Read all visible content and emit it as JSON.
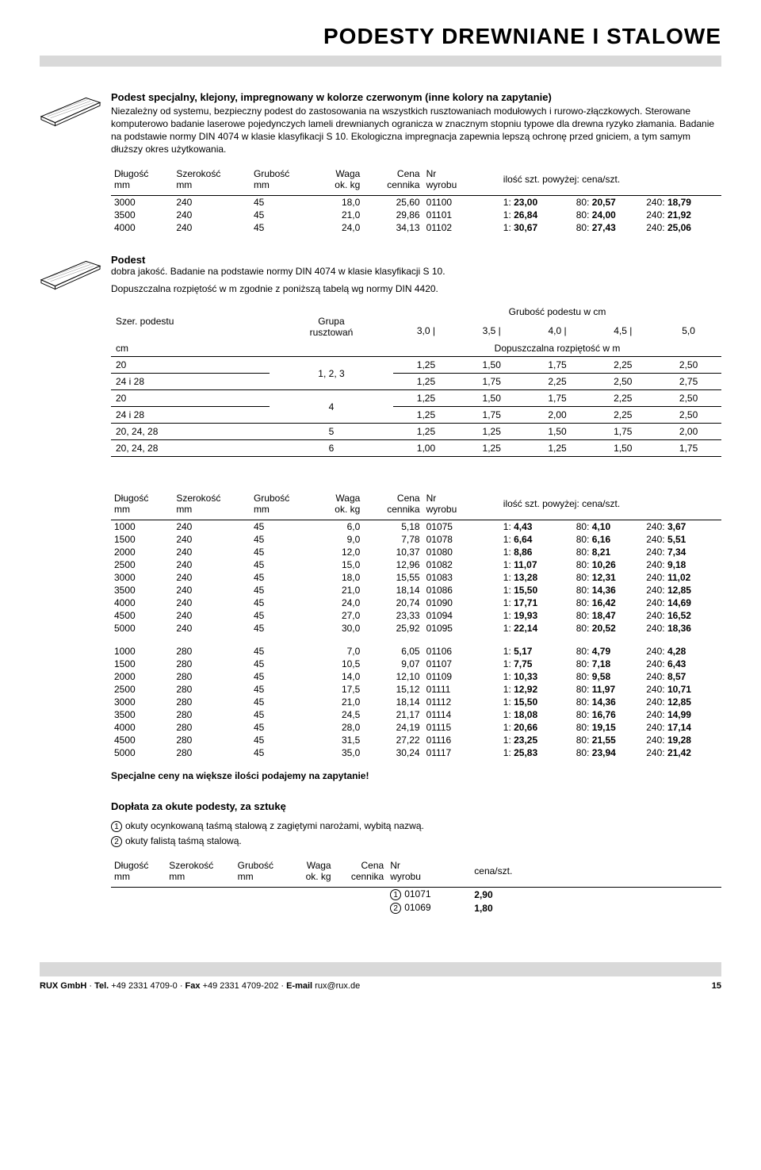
{
  "page": {
    "title": "PODESTY DREWNIANE I STALOWE",
    "number": "15"
  },
  "product1": {
    "heading": "Podest specjalny, klejony, impregnowany w kolorze czerwonym (inne kolory na zapytanie)",
    "desc": "Niezależny od systemu, bezpieczny podest do zastosowania na wszystkich rusztowaniach modułowych i rurowo-złączkowych. Sterowane komputerowo badanie laserowe pojedynczych lameli drewnianych ogranicza w znacznym stopniu typowe dla drewna ryzyko złamania. Badanie na podstawie normy DIN 4074 w klasie klasyfikacji S 10. Ekologiczna impregnacja zapewnia lepszą ochronę przed gniciem, a tym samym dłuższy okres użytkowania."
  },
  "headers": {
    "length": "Długość\nmm",
    "width": "Szerokość\nmm",
    "thick": "Grubość\nmm",
    "weight": "Waga\nok. kg",
    "price": "Cena\ncennika",
    "partno": "Nr\nwyrobu",
    "qtyprice": "ilość szt. powyżej: cena/szt.",
    "unitprice": "cena/szt."
  },
  "table1": {
    "rows": [
      {
        "l": "3000",
        "w": "240",
        "t": "45",
        "kg": "18,0",
        "c": "25,60",
        "nr": "01100",
        "p1": "1: 23,00",
        "p80": "80: 20,57",
        "p240": "240: 18,79"
      },
      {
        "l": "3500",
        "w": "240",
        "t": "45",
        "kg": "21,0",
        "c": "29,86",
        "nr": "01101",
        "p1": "1: 26,84",
        "p80": "80: 24,00",
        "p240": "240: 21,92"
      },
      {
        "l": "4000",
        "w": "240",
        "t": "45",
        "kg": "24,0",
        "c": "34,13",
        "nr": "01102",
        "p1": "1: 30,67",
        "p80": "80: 27,43",
        "p240": "240: 25,06"
      }
    ]
  },
  "product2": {
    "heading": "Podest",
    "desc1": "dobra jakość. Badanie na podstawie normy DIN 4074 w klasie klasyfikacji S 10.",
    "desc2": "Dopuszczalna rozpiętość w m zgodnie z poniższą tabelą wg normy DIN 4420."
  },
  "dinTable": {
    "h_szer": "Szer. podestu",
    "h_cm": "cm",
    "h_grupa": "Grupa\nrusztowań",
    "h_grubosc": "Grubość podestu w cm",
    "h_rozp": "Dopuszczalna rozpiętość w m",
    "cols": [
      "3,0",
      "3,5",
      "4,0",
      "4,5",
      "5,0"
    ],
    "rows": [
      {
        "szer": "20",
        "grupa": "1, 2, 3",
        "v": [
          "1,25",
          "1,50",
          "1,75",
          "2,25",
          "2,50"
        ]
      },
      {
        "szer": "24 i 28",
        "grupa": "",
        "v": [
          "1,25",
          "1,75",
          "2,25",
          "2,50",
          "2,75"
        ]
      },
      {
        "szer": "20",
        "grupa": "4",
        "v": [
          "1,25",
          "1,50",
          "1,75",
          "2,25",
          "2,50"
        ]
      },
      {
        "szer": "24 i 28",
        "grupa": "",
        "v": [
          "1,25",
          "1,75",
          "2,00",
          "2,25",
          "2,50"
        ]
      },
      {
        "szer": "20, 24, 28",
        "grupa": "5",
        "v": [
          "1,25",
          "1,25",
          "1,50",
          "1,75",
          "2,00"
        ]
      },
      {
        "szer": "20, 24, 28",
        "grupa": "6",
        "v": [
          "1,00",
          "1,25",
          "1,25",
          "1,50",
          "1,75"
        ]
      }
    ]
  },
  "table2": {
    "groups": [
      [
        {
          "l": "1000",
          "w": "240",
          "t": "45",
          "kg": "6,0",
          "c": "5,18",
          "nr": "01075",
          "p1": "1:  4,43",
          "p80": "80:  4,10",
          "p240": "240:  3,67"
        },
        {
          "l": "1500",
          "w": "240",
          "t": "45",
          "kg": "9,0",
          "c": "7,78",
          "nr": "01078",
          "p1": "1:  6,64",
          "p80": "80:  6,16",
          "p240": "240:  5,51"
        },
        {
          "l": "2000",
          "w": "240",
          "t": "45",
          "kg": "12,0",
          "c": "10,37",
          "nr": "01080",
          "p1": "1:  8,86",
          "p80": "80:  8,21",
          "p240": "240:  7,34"
        },
        {
          "l": "2500",
          "w": "240",
          "t": "45",
          "kg": "15,0",
          "c": "12,96",
          "nr": "01082",
          "p1": "1: 11,07",
          "p80": "80: 10,26",
          "p240": "240:  9,18"
        },
        {
          "l": "3000",
          "w": "240",
          "t": "45",
          "kg": "18,0",
          "c": "15,55",
          "nr": "01083",
          "p1": "1: 13,28",
          "p80": "80: 12,31",
          "p240": "240: 11,02"
        },
        {
          "l": "3500",
          "w": "240",
          "t": "45",
          "kg": "21,0",
          "c": "18,14",
          "nr": "01086",
          "p1": "1: 15,50",
          "p80": "80: 14,36",
          "p240": "240: 12,85"
        },
        {
          "l": "4000",
          "w": "240",
          "t": "45",
          "kg": "24,0",
          "c": "20,74",
          "nr": "01090",
          "p1": "1: 17,71",
          "p80": "80: 16,42",
          "p240": "240: 14,69"
        },
        {
          "l": "4500",
          "w": "240",
          "t": "45",
          "kg": "27,0",
          "c": "23,33",
          "nr": "01094",
          "p1": "1: 19,93",
          "p80": "80: 18,47",
          "p240": "240: 16,52"
        },
        {
          "l": "5000",
          "w": "240",
          "t": "45",
          "kg": "30,0",
          "c": "25,92",
          "nr": "01095",
          "p1": "1: 22,14",
          "p80": "80: 20,52",
          "p240": "240: 18,36"
        }
      ],
      [
        {
          "l": "1000",
          "w": "280",
          "t": "45",
          "kg": "7,0",
          "c": "6,05",
          "nr": "01106",
          "p1": "1:  5,17",
          "p80": "80:  4,79",
          "p240": "240:  4,28"
        },
        {
          "l": "1500",
          "w": "280",
          "t": "45",
          "kg": "10,5",
          "c": "9,07",
          "nr": "01107",
          "p1": "1:  7,75",
          "p80": "80:  7,18",
          "p240": "240:  6,43"
        },
        {
          "l": "2000",
          "w": "280",
          "t": "45",
          "kg": "14,0",
          "c": "12,10",
          "nr": "01109",
          "p1": "1: 10,33",
          "p80": "80:  9,58",
          "p240": "240:  8,57"
        },
        {
          "l": "2500",
          "w": "280",
          "t": "45",
          "kg": "17,5",
          "c": "15,12",
          "nr": "01111",
          "p1": "1: 12,92",
          "p80": "80: 11,97",
          "p240": "240: 10,71"
        },
        {
          "l": "3000",
          "w": "280",
          "t": "45",
          "kg": "21,0",
          "c": "18,14",
          "nr": "01112",
          "p1": "1: 15,50",
          "p80": "80: 14,36",
          "p240": "240: 12,85"
        },
        {
          "l": "3500",
          "w": "280",
          "t": "45",
          "kg": "24,5",
          "c": "21,17",
          "nr": "01114",
          "p1": "1: 18,08",
          "p80": "80: 16,76",
          "p240": "240: 14,99"
        },
        {
          "l": "4000",
          "w": "280",
          "t": "45",
          "kg": "28,0",
          "c": "24,19",
          "nr": "01115",
          "p1": "1: 20,66",
          "p80": "80: 19,15",
          "p240": "240: 17,14"
        },
        {
          "l": "4500",
          "w": "280",
          "t": "45",
          "kg": "31,5",
          "c": "27,22",
          "nr": "01116",
          "p1": "1: 23,25",
          "p80": "80: 21,55",
          "p240": "240: 19,28"
        },
        {
          "l": "5000",
          "w": "280",
          "t": "45",
          "kg": "35,0",
          "c": "30,24",
          "nr": "01117",
          "p1": "1: 25,83",
          "p80": "80: 23,94",
          "p240": "240: 21,42"
        }
      ]
    ]
  },
  "note": "Specjalne ceny na większe ilości podajemy na zapytanie!",
  "surcharge": {
    "heading": "Dopłata za okute podesty, za sztukę",
    "line1": "okuty ocynkowaną taśmą stalową z zagiętymi narożami, wybitą nazwą.",
    "line2": "okuty falistą taśmą stalową.",
    "rows": [
      {
        "mark": "1",
        "nr": "01071",
        "price": "2,90"
      },
      {
        "mark": "2",
        "nr": "01069",
        "price": "1,80"
      }
    ]
  },
  "footer": {
    "company": "RUX GmbH",
    "tel_label": "Tel.",
    "tel": "+49 2331 4709-0",
    "fax_label": "Fax",
    "fax": "+49 2331 4709-202",
    "email_label": "E-mail",
    "email": "rux@rux.de"
  }
}
